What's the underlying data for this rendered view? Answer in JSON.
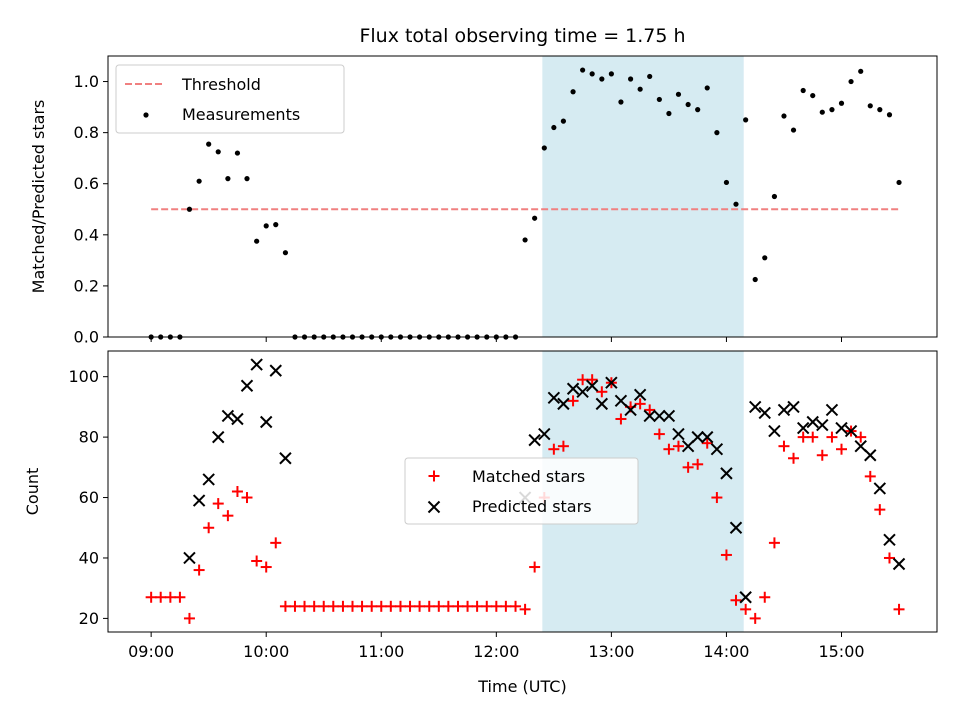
{
  "chart_data": [
    {
      "type": "scatter",
      "title": "Flux total observing time = 1.75 h",
      "xlabel": "",
      "ylabel": "Matched/Predicted stars",
      "ylim": [
        0,
        1.1
      ],
      "yticks": [
        "0.0",
        "0.2",
        "0.4",
        "0.6",
        "0.8",
        "1.0"
      ],
      "ytick_values": [
        0,
        0.2,
        0.4,
        0.6,
        0.8,
        1.0
      ],
      "legend_position": "top-left",
      "threshold": {
        "name": "Threshold",
        "y": 0.5,
        "x_start": 9.0,
        "x_end": 15.5,
        "color": "#f08080"
      },
      "measurements": {
        "name": "Measurements",
        "color": "#000000",
        "x": [
          9.0,
          9.083,
          9.167,
          9.25,
          9.333,
          9.417,
          9.5,
          9.583,
          9.667,
          9.75,
          9.833,
          9.917,
          10.0,
          10.083,
          10.167,
          10.25,
          10.333,
          10.417,
          10.5,
          10.583,
          10.667,
          10.75,
          10.833,
          10.917,
          11.0,
          11.083,
          11.167,
          11.25,
          11.333,
          11.417,
          11.5,
          11.583,
          11.667,
          11.75,
          11.833,
          11.917,
          12.0,
          12.083,
          12.167,
          12.25,
          12.333,
          12.417,
          12.5,
          12.583,
          12.667,
          12.75,
          12.833,
          12.917,
          13.0,
          13.083,
          13.167,
          13.25,
          13.333,
          13.417,
          13.5,
          13.583,
          13.667,
          13.75,
          13.833,
          13.917,
          14.0,
          14.083,
          14.167,
          14.25,
          14.333,
          14.417,
          14.5,
          14.583,
          14.667,
          14.75,
          14.833,
          14.917,
          15.0,
          15.083,
          15.167,
          15.25,
          15.333,
          15.417,
          15.5
        ],
        "y": [
          0.0,
          0.0,
          0.0,
          0.0,
          0.5,
          0.61,
          0.755,
          0.725,
          0.62,
          0.72,
          0.62,
          0.375,
          0.435,
          0.44,
          0.33,
          0.0,
          0.0,
          0.0,
          0.0,
          0.0,
          0.0,
          0.0,
          0.0,
          0.0,
          0.0,
          0.0,
          0.0,
          0.0,
          0.0,
          0.0,
          0.0,
          0.0,
          0.0,
          0.0,
          0.0,
          0.0,
          0.0,
          0.0,
          0.0,
          0.38,
          0.465,
          0.74,
          0.82,
          0.845,
          0.96,
          1.045,
          1.03,
          1.01,
          1.03,
          0.92,
          1.01,
          0.97,
          1.02,
          0.93,
          0.875,
          0.95,
          0.91,
          0.89,
          0.975,
          0.8,
          0.605,
          0.52,
          0.85,
          0.225,
          0.31,
          0.55,
          0.865,
          0.81,
          0.965,
          0.945,
          0.88,
          0.89,
          0.915,
          1.0,
          1.04,
          0.905,
          0.89,
          0.87,
          0.605
        ]
      },
      "highlight_band": {
        "x_start": 12.4,
        "x_end": 14.15,
        "color": "#add8e6"
      }
    },
    {
      "type": "scatter",
      "title": "",
      "xlabel": "Time (UTC)",
      "ylabel": "Count",
      "xlim": [
        8.625,
        15.83
      ],
      "ylim": [
        15.5,
        108.5
      ],
      "xticks": [
        "09:00",
        "10:00",
        "11:00",
        "12:00",
        "13:00",
        "14:00",
        "15:00"
      ],
      "xtick_values": [
        9,
        10,
        11,
        12,
        13,
        14,
        15
      ],
      "yticks": [
        "20",
        "40",
        "60",
        "80",
        "100"
      ],
      "ytick_values": [
        20,
        40,
        60,
        80,
        100
      ],
      "legend_position": "center",
      "highlight_band": {
        "x_start": 12.4,
        "x_end": 14.15,
        "color": "#add8e6"
      },
      "series": [
        {
          "name": "Matched stars",
          "color": "#ff0000",
          "marker": "plus",
          "x": [
            9.0,
            9.083,
            9.167,
            9.25,
            9.333,
            9.417,
            9.5,
            9.583,
            9.667,
            9.75,
            9.833,
            9.917,
            10.0,
            10.083,
            10.167,
            10.25,
            10.333,
            10.417,
            10.5,
            10.583,
            10.667,
            10.75,
            10.833,
            10.917,
            11.0,
            11.083,
            11.167,
            11.25,
            11.333,
            11.417,
            11.5,
            11.583,
            11.667,
            11.75,
            11.833,
            11.917,
            12.0,
            12.083,
            12.167,
            12.25,
            12.333,
            12.417,
            12.5,
            12.583,
            12.667,
            12.75,
            12.833,
            12.917,
            13.0,
            13.083,
            13.167,
            13.25,
            13.333,
            13.417,
            13.5,
            13.583,
            13.667,
            13.75,
            13.833,
            13.917,
            14.0,
            14.083,
            14.167,
            14.25,
            14.333,
            14.417,
            14.5,
            14.583,
            14.667,
            14.75,
            14.833,
            14.917,
            15.0,
            15.083,
            15.167,
            15.25,
            15.333,
            15.417,
            15.5
          ],
          "values": [
            27,
            27,
            27,
            27,
            20,
            36,
            50,
            58,
            54,
            62,
            60,
            39,
            37,
            45,
            24,
            24,
            24,
            24,
            24,
            24,
            24,
            24,
            24,
            24,
            24,
            24,
            24,
            24,
            24,
            24,
            24,
            24,
            24,
            24,
            24,
            24,
            24,
            24,
            24,
            23,
            37,
            60,
            76,
            77,
            92,
            99,
            99,
            95,
            98,
            86,
            90,
            91,
            89,
            81,
            76,
            77,
            70,
            71,
            78,
            60,
            41,
            26,
            23,
            20,
            27,
            45,
            77,
            73,
            80,
            80,
            74,
            80,
            76,
            82,
            80,
            67,
            56,
            40,
            23
          ]
        },
        {
          "name": "Predicted stars",
          "color": "#000000",
          "marker": "x",
          "x": [
            9.333,
            9.417,
            9.5,
            9.583,
            9.667,
            9.75,
            9.833,
            9.917,
            10.0,
            10.083,
            10.167,
            12.25,
            12.333,
            12.417,
            12.5,
            12.583,
            12.667,
            12.75,
            12.833,
            12.917,
            13.0,
            13.083,
            13.167,
            13.25,
            13.333,
            13.417,
            13.5,
            13.583,
            13.667,
            13.75,
            13.833,
            13.917,
            14.0,
            14.083,
            14.167,
            14.25,
            14.333,
            14.417,
            14.5,
            14.583,
            14.667,
            14.75,
            14.833,
            14.917,
            15.0,
            15.083,
            15.167,
            15.25,
            15.333,
            15.417,
            15.5
          ],
          "values": [
            40,
            59,
            66,
            80,
            87,
            86,
            97,
            104,
            85,
            102,
            73,
            60,
            79,
            81,
            93,
            91,
            96,
            95,
            97,
            91,
            98,
            92,
            89,
            94,
            87,
            87,
            87,
            81,
            77,
            80,
            80,
            76,
            68,
            50,
            27,
            90,
            88,
            82,
            89,
            90,
            83,
            85,
            84,
            89,
            83,
            82,
            77,
            74,
            63,
            46,
            38
          ]
        }
      ]
    }
  ]
}
